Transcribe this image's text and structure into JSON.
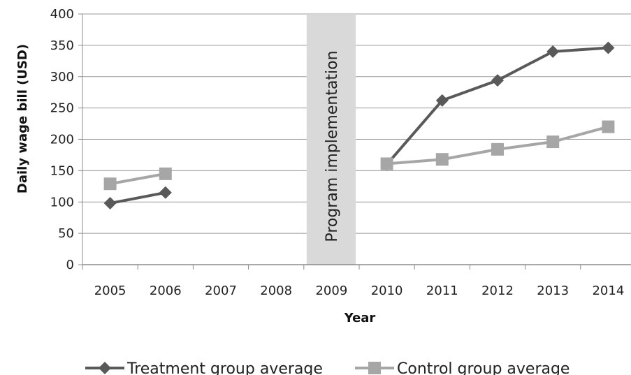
{
  "chart_data": {
    "type": "line",
    "xlabel": "Year",
    "ylabel": "Daily wage bill (USD)",
    "categories": [
      "2005",
      "2006",
      "2007",
      "2008",
      "2009",
      "2010",
      "2011",
      "2012",
      "2013",
      "2014"
    ],
    "ylim": [
      0,
      400
    ],
    "yticks": [
      0,
      50,
      100,
      150,
      200,
      250,
      300,
      350,
      400
    ],
    "grid": true,
    "legend_position": "bottom",
    "annotation": {
      "label": "Program  implementation",
      "category": "2009",
      "color": "#d9d9d9"
    },
    "series": [
      {
        "name": "Treatment group average",
        "color": "#595959",
        "marker": "diamond",
        "values": [
          98,
          115,
          null,
          null,
          null,
          160,
          262,
          294,
          340,
          346
        ]
      },
      {
        "name": "Control group average",
        "color": "#a6a6a6",
        "marker": "square",
        "values": [
          129,
          145,
          null,
          null,
          null,
          161,
          168,
          184,
          196,
          220
        ]
      }
    ]
  }
}
